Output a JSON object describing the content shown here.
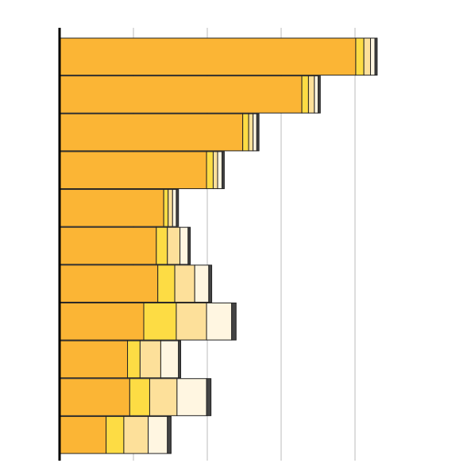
{
  "chart_data": {
    "type": "stacked-bar",
    "orientation": "horizontal",
    "categories": [
      null,
      null,
      null,
      null,
      null,
      null,
      null,
      null,
      null,
      null,
      null
    ],
    "series": [
      {
        "color": "#fbb535",
        "values": [
          4.01,
          3.28,
          2.48,
          1.99,
          1.41,
          1.31,
          1.33,
          1.14,
          0.92,
          0.95,
          0.63
        ]
      },
      {
        "color": "#fddc44",
        "values": [
          0.11,
          0.09,
          0.08,
          0.09,
          0.06,
          0.15,
          0.23,
          0.44,
          0.17,
          0.27,
          0.24
        ]
      },
      {
        "color": "#fde09a",
        "values": [
          0.09,
          0.08,
          0.06,
          0.06,
          0.06,
          0.17,
          0.27,
          0.41,
          0.28,
          0.37,
          0.33
        ]
      },
      {
        "color": "#fff6e1",
        "values": [
          0.06,
          0.05,
          0.05,
          0.06,
          0.05,
          0.11,
          0.19,
          0.34,
          0.24,
          0.4,
          0.26
        ]
      },
      {
        "color": "#444444",
        "values": [
          0.03,
          0.03,
          0.03,
          0.03,
          0.03,
          0.03,
          0.04,
          0.06,
          0.03,
          0.06,
          0.05
        ]
      }
    ],
    "xlim": [
      0,
      5
    ],
    "xticks": [
      1,
      2,
      3,
      4
    ],
    "grid": true
  }
}
